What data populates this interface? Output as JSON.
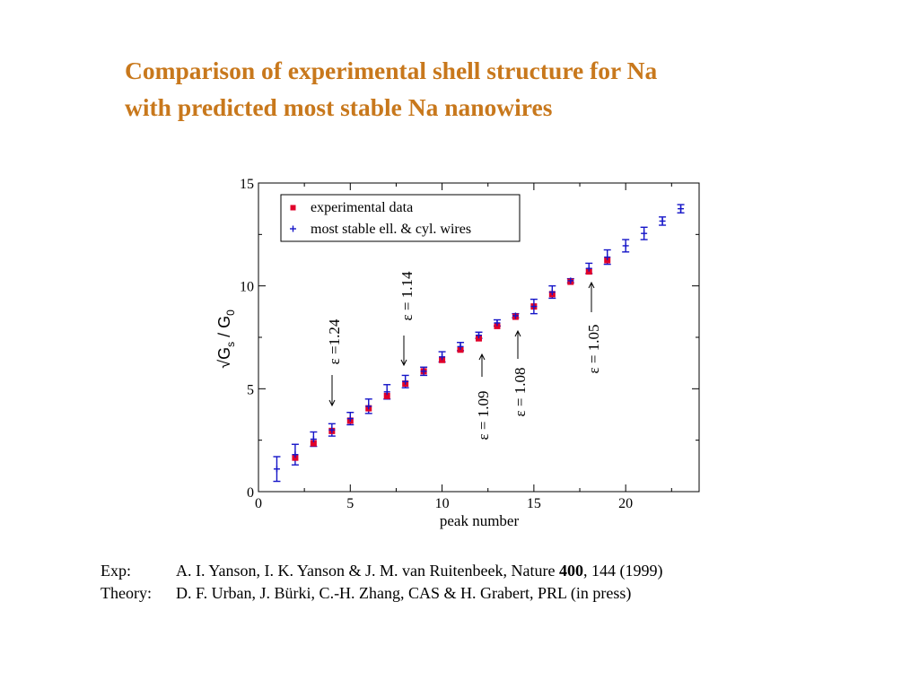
{
  "title": {
    "line1": "Comparison of experimental shell structure for Na",
    "line2": "with predicted most stable Na nanowires"
  },
  "colors": {
    "title": "#c8781c",
    "experimental": "#e0002a",
    "theory": "#1515c8"
  },
  "chart_data": {
    "type": "scatter",
    "xlabel": "peak number",
    "ylabel": "√Gs / G0",
    "ylabel_parts": {
      "radical": "√",
      "g": "G",
      "sub_s": "s",
      "slash": " / G",
      "sub_0": "0"
    },
    "xlim": [
      0,
      24
    ],
    "ylim": [
      0,
      15
    ],
    "xticks": [
      0,
      5,
      10,
      15,
      20
    ],
    "yticks": [
      0,
      5,
      10,
      15
    ],
    "grid": false,
    "legend_position": "top-left",
    "series": [
      {
        "name": "experimental data",
        "marker": "square",
        "color": "#e0002a",
        "x": [
          2,
          3,
          4,
          5,
          6,
          7,
          8,
          9,
          10,
          11,
          12,
          13,
          14,
          15,
          16,
          17,
          18,
          19
        ],
        "y": [
          1.65,
          2.35,
          2.95,
          3.45,
          4.05,
          4.65,
          5.25,
          5.85,
          6.4,
          6.9,
          7.45,
          8.05,
          8.5,
          9.0,
          9.6,
          10.2,
          10.7,
          11.25
        ]
      },
      {
        "name": "most stable ell. & cyl. wires",
        "marker": "plus",
        "color": "#1515c8",
        "x": [
          1,
          2,
          3,
          4,
          5,
          6,
          7,
          8,
          9,
          10,
          11,
          12,
          13,
          14,
          15,
          16,
          17,
          18,
          19,
          20,
          21,
          22,
          23
        ],
        "y": [
          1.1,
          1.8,
          2.55,
          3.0,
          3.55,
          4.15,
          4.85,
          5.35,
          5.85,
          6.55,
          7.05,
          7.6,
          8.2,
          8.55,
          9.0,
          9.7,
          10.25,
          10.85,
          11.4,
          11.95,
          12.55,
          13.15,
          13.75
        ],
        "err": [
          0.6,
          0.5,
          0.35,
          0.3,
          0.3,
          0.35,
          0.35,
          0.3,
          0.2,
          0.25,
          0.2,
          0.15,
          0.15,
          0.1,
          0.35,
          0.3,
          0.1,
          0.25,
          0.35,
          0.3,
          0.3,
          0.2,
          0.2
        ]
      }
    ],
    "annotations": [
      {
        "text": "ε =1.24",
        "x": 4,
        "direction": "down"
      },
      {
        "text": "ε = 1.14",
        "x": 8,
        "direction": "down"
      },
      {
        "text": "ε = 1.09",
        "x": 12,
        "direction": "up"
      },
      {
        "text": "ε = 1.08",
        "x": 14,
        "direction": "up"
      },
      {
        "text": "ε = 1.05",
        "x": 18,
        "direction": "up"
      }
    ]
  },
  "references": {
    "exp": {
      "tag": "Exp:",
      "text_before": "A. I. Yanson, I. K. Yanson & J. M. van Ruitenbeek, Nature ",
      "volume": "400",
      "text_after": ", 144 (1999)"
    },
    "theory": {
      "tag": "Theory:",
      "text": "D. F. Urban, J. Bürki, C.-H. Zhang, CAS & H. Grabert, PRL (in press)"
    }
  }
}
